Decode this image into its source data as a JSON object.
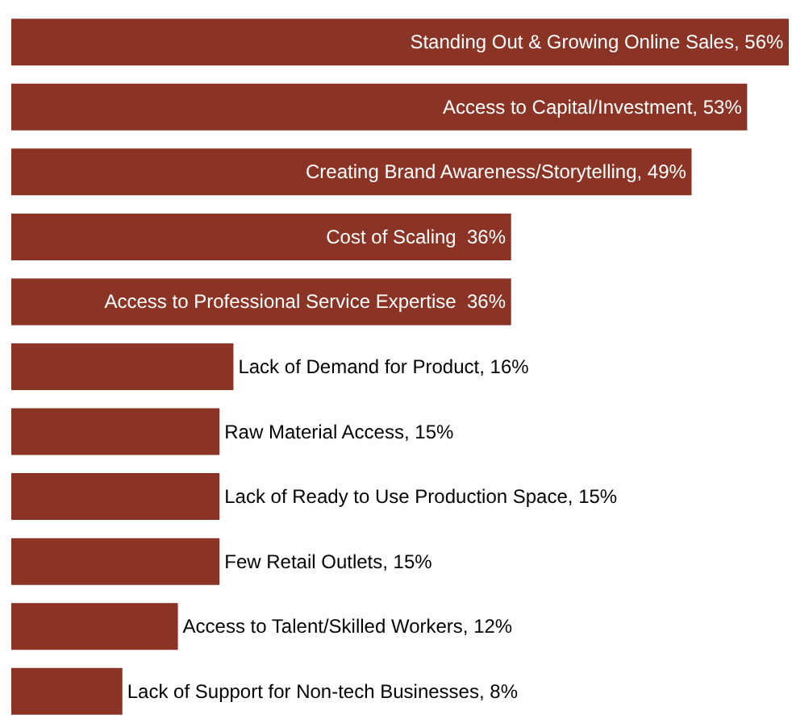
{
  "chart_data": {
    "type": "bar",
    "orientation": "horizontal",
    "color": "#8b3324",
    "tick_labels": false,
    "legend": false,
    "categories": [
      null,
      null,
      null,
      null,
      null,
      null,
      null,
      null,
      null,
      null,
      null
    ],
    "values": [
      56,
      53,
      49,
      36,
      36,
      16,
      15,
      15,
      15,
      12,
      8
    ],
    "value_labels": [
      "Standing Out & Growing Online Sales, 56%",
      "Access to Capital/Investment, 53%",
      "Creating Brand Awareness/Storytelling, 49%",
      "Cost of Scaling  36%",
      "Access to Professional Service Expertise  36%",
      "Lack of Demand for Product, 16%",
      "Raw Material Access, 15%",
      "Lack of Ready to Use Production Space, 15%",
      "Few Retail Outlets, 15%",
      "Access to Talent/Skilled Workers, 12%",
      "Lack of Support for Non-tech Businesses, 8%"
    ]
  }
}
